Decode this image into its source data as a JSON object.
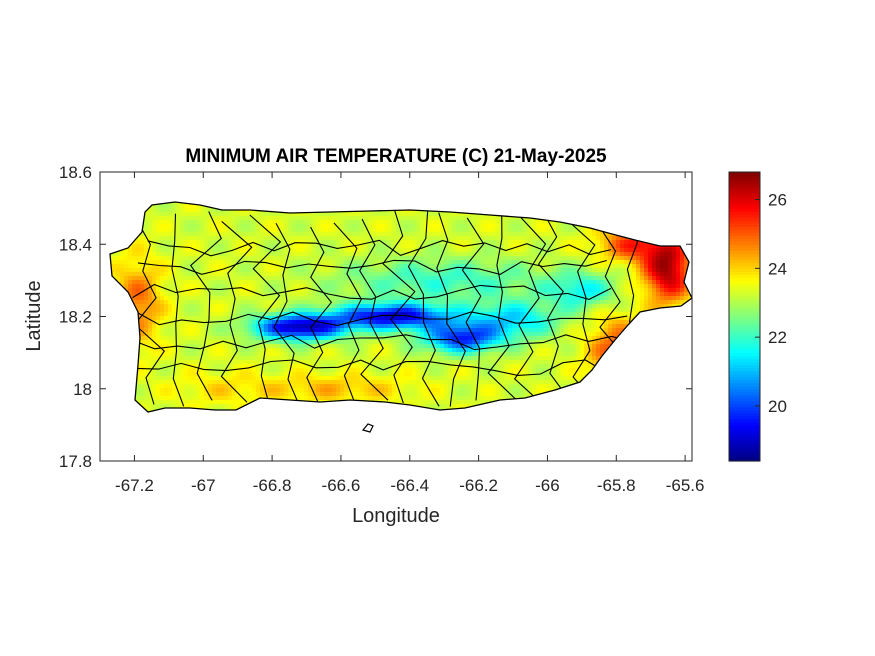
{
  "chart_data": {
    "type": "heatmap",
    "title": "MINIMUM AIR TEMPERATURE (C) 21-May-2025",
    "xlabel": "Longitude",
    "ylabel": "Latitude",
    "xlim": [
      -67.3,
      -65.58
    ],
    "ylim": [
      17.8,
      18.6
    ],
    "x_ticks": [
      -67.2,
      -67,
      -66.8,
      -66.6,
      -66.4,
      -66.2,
      -66,
      -65.8,
      -65.6
    ],
    "x_tick_labels": [
      "-67.2",
      "-67",
      "-66.8",
      "-66.6",
      "-66.4",
      "-66.2",
      "-66",
      "-65.8",
      "-65.6"
    ],
    "y_ticks": [
      17.8,
      18,
      18.2,
      18.4,
      18.6
    ],
    "y_tick_labels": [
      "17.8",
      "18",
      "18.2",
      "18.4",
      "18.6"
    ],
    "colorbar": {
      "colormap": "jet",
      "clim": [
        18.4,
        26.8
      ],
      "ticks": [
        20,
        22,
        24,
        26
      ],
      "tick_labels": [
        "20",
        "22",
        "24",
        "26"
      ]
    },
    "grid": false,
    "field": {
      "base_temperature": 23.3,
      "features": [
        {
          "lon": -66.72,
          "lat": 18.17,
          "rx": 0.13,
          "ry": 0.035,
          "delta": -4.5
        },
        {
          "lon": -66.45,
          "lat": 18.2,
          "rx": 0.17,
          "ry": 0.035,
          "delta": -4.2
        },
        {
          "lon": -66.25,
          "lat": 18.14,
          "rx": 0.11,
          "ry": 0.04,
          "delta": -3.5
        },
        {
          "lon": -66.1,
          "lat": 18.19,
          "rx": 0.13,
          "ry": 0.05,
          "delta": -2.0
        },
        {
          "lon": -66.3,
          "lat": 18.3,
          "rx": 0.3,
          "ry": 0.06,
          "delta": -1.3
        },
        {
          "lon": -65.9,
          "lat": 18.27,
          "rx": 0.1,
          "ry": 0.05,
          "delta": -1.6
        },
        {
          "lon": -65.65,
          "lat": 18.33,
          "rx": 0.07,
          "ry": 0.09,
          "delta": 3.2
        },
        {
          "lon": -65.75,
          "lat": 18.4,
          "rx": 0.1,
          "ry": 0.05,
          "delta": 2.0
        },
        {
          "lon": -65.8,
          "lat": 18.1,
          "rx": 0.08,
          "ry": 0.1,
          "delta": 1.8
        },
        {
          "lon": -67.19,
          "lat": 18.24,
          "rx": 0.07,
          "ry": 0.12,
          "delta": 1.5
        },
        {
          "lon": -66.62,
          "lat": 18.0,
          "rx": 0.22,
          "ry": 0.04,
          "delta": 0.9
        },
        {
          "lon": -66.95,
          "lat": 18.0,
          "rx": 0.15,
          "ry": 0.05,
          "delta": 0.5
        }
      ]
    }
  },
  "colors": {
    "axis": "#262626",
    "boundary": "#000000",
    "background": "#ffffff"
  }
}
